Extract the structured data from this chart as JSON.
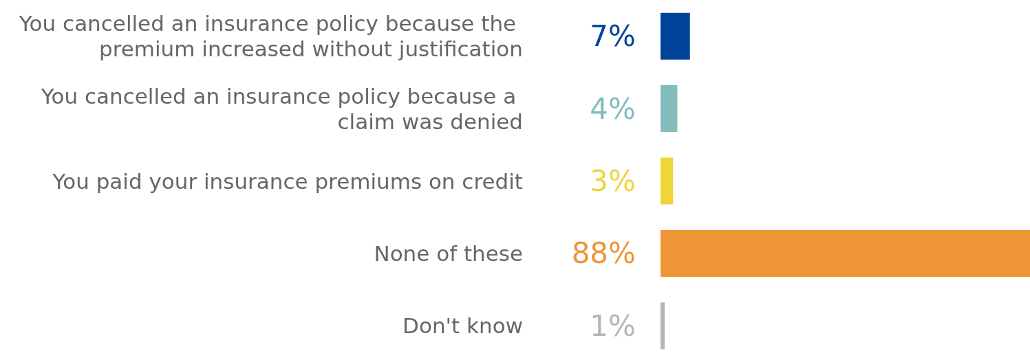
{
  "chart_data": {
    "type": "bar",
    "orientation": "horizontal",
    "categories": [
      "You cancelled an insurance policy because the premium increased without justification",
      "You cancelled an insurance policy because a claim was denied",
      "You paid your insurance premiums on credit",
      "None of these",
      "Don't know"
    ],
    "values": [
      7,
      4,
      3,
      88,
      1
    ],
    "value_labels": [
      "7%",
      "4%",
      "3%",
      "88%",
      "1%"
    ],
    "colors": [
      "#00429a",
      "#84bcbe",
      "#efd43a",
      "#f09537",
      "#b5b5b5"
    ],
    "xlim": [
      0,
      88
    ],
    "tick_labels": "y"
  }
}
